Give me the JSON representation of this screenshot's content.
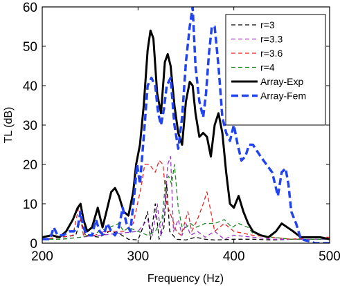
{
  "chart_data": {
    "type": "line",
    "xlabel": "Frequency (Hz)",
    "ylabel": "TL (dB)",
    "xlim": [
      200,
      500
    ],
    "ylim": [
      0,
      60
    ],
    "xticks": [
      200,
      300,
      400,
      500
    ],
    "yticks": [
      0,
      10,
      20,
      30,
      40,
      50,
      60
    ],
    "grid": false,
    "legend_position": "top-right",
    "series": [
      {
        "name": "r=3",
        "color": "#000000",
        "style": "dashed-thin",
        "points": [
          [
            200,
            1
          ],
          [
            220,
            1.5
          ],
          [
            235,
            2
          ],
          [
            240,
            6
          ],
          [
            245,
            2
          ],
          [
            260,
            1.5
          ],
          [
            270,
            3
          ],
          [
            280,
            2.5
          ],
          [
            290,
            1
          ],
          [
            300,
            0.8
          ],
          [
            305,
            4
          ],
          [
            310,
            8
          ],
          [
            313,
            1
          ],
          [
            318,
            10
          ],
          [
            322,
            1
          ],
          [
            327,
            4
          ],
          [
            330,
            15
          ],
          [
            333,
            3
          ],
          [
            340,
            1
          ],
          [
            350,
            0.8
          ],
          [
            360,
            1.5
          ],
          [
            370,
            1
          ],
          [
            380,
            0.8
          ],
          [
            400,
            1
          ],
          [
            420,
            1
          ],
          [
            440,
            0.8
          ],
          [
            460,
            1
          ],
          [
            480,
            1
          ],
          [
            500,
            1
          ]
        ]
      },
      {
        "name": "r=3.3",
        "color": "#9933cc",
        "style": "dashed-thin",
        "points": [
          [
            200,
            1
          ],
          [
            220,
            1
          ],
          [
            240,
            1.5
          ],
          [
            260,
            2
          ],
          [
            280,
            2.5
          ],
          [
            300,
            3
          ],
          [
            310,
            6
          ],
          [
            315,
            2
          ],
          [
            320,
            10
          ],
          [
            324,
            2
          ],
          [
            328,
            10
          ],
          [
            331,
            20
          ],
          [
            334,
            22
          ],
          [
            337,
            3
          ],
          [
            342,
            6
          ],
          [
            346,
            2
          ],
          [
            350,
            5
          ],
          [
            355,
            2
          ],
          [
            362,
            3
          ],
          [
            370,
            1.5
          ],
          [
            380,
            3
          ],
          [
            390,
            1
          ],
          [
            400,
            2
          ],
          [
            420,
            1.5
          ],
          [
            440,
            1
          ],
          [
            460,
            1
          ],
          [
            480,
            1
          ],
          [
            500,
            1
          ]
        ]
      },
      {
        "name": "r=3.6",
        "color": "#ee2222",
        "style": "dashed-thin",
        "points": [
          [
            200,
            1
          ],
          [
            220,
            1.5
          ],
          [
            232,
            2
          ],
          [
            238,
            9
          ],
          [
            243,
            2
          ],
          [
            255,
            2
          ],
          [
            265,
            3
          ],
          [
            275,
            3
          ],
          [
            285,
            3
          ],
          [
            295,
            5
          ],
          [
            303,
            14
          ],
          [
            307,
            20
          ],
          [
            312,
            20
          ],
          [
            318,
            18
          ],
          [
            322,
            21
          ],
          [
            326,
            20
          ],
          [
            330,
            10
          ],
          [
            336,
            6
          ],
          [
            340,
            3
          ],
          [
            345,
            2
          ],
          [
            352,
            8
          ],
          [
            356,
            3
          ],
          [
            362,
            6
          ],
          [
            368,
            10
          ],
          [
            372,
            13
          ],
          [
            376,
            8
          ],
          [
            380,
            3
          ],
          [
            390,
            5
          ],
          [
            400,
            3
          ],
          [
            420,
            2
          ],
          [
            440,
            1.5
          ],
          [
            460,
            1
          ],
          [
            480,
            1.5
          ],
          [
            500,
            1.5
          ]
        ]
      },
      {
        "name": "r=4",
        "color": "#228822",
        "style": "dashed-thin",
        "points": [
          [
            200,
            1
          ],
          [
            220,
            1
          ],
          [
            240,
            1.5
          ],
          [
            250,
            2
          ],
          [
            260,
            3
          ],
          [
            270,
            4
          ],
          [
            280,
            5
          ],
          [
            285,
            3
          ],
          [
            290,
            4
          ],
          [
            300,
            3
          ],
          [
            310,
            2
          ],
          [
            318,
            3
          ],
          [
            325,
            6
          ],
          [
            329,
            16
          ],
          [
            332,
            17
          ],
          [
            335,
            15
          ],
          [
            338,
            20
          ],
          [
            342,
            9
          ],
          [
            346,
            4
          ],
          [
            350,
            4
          ],
          [
            355,
            5
          ],
          [
            360,
            4
          ],
          [
            370,
            5
          ],
          [
            380,
            5
          ],
          [
            390,
            6
          ],
          [
            398,
            4
          ],
          [
            405,
            5
          ],
          [
            415,
            4
          ],
          [
            420,
            2.5
          ],
          [
            430,
            2
          ],
          [
            440,
            1.5
          ],
          [
            460,
            1
          ],
          [
            480,
            1
          ],
          [
            500,
            1
          ]
        ]
      },
      {
        "name": "Array-Exp",
        "color": "#000000",
        "style": "solid-thick",
        "points": [
          [
            200,
            1.5
          ],
          [
            210,
            2
          ],
          [
            218,
            1.5
          ],
          [
            225,
            3
          ],
          [
            232,
            6
          ],
          [
            237,
            9
          ],
          [
            240,
            10
          ],
          [
            243,
            6
          ],
          [
            247,
            3
          ],
          [
            252,
            4
          ],
          [
            258,
            9
          ],
          [
            263,
            4
          ],
          [
            268,
            9
          ],
          [
            272,
            13
          ],
          [
            276,
            14
          ],
          [
            280,
            12
          ],
          [
            285,
            8
          ],
          [
            290,
            7
          ],
          [
            295,
            13
          ],
          [
            298,
            20
          ],
          [
            302,
            25
          ],
          [
            306,
            35
          ],
          [
            310,
            49
          ],
          [
            313,
            54
          ],
          [
            316,
            52
          ],
          [
            320,
            38
          ],
          [
            324,
            33
          ],
          [
            328,
            46
          ],
          [
            331,
            48
          ],
          [
            334,
            45
          ],
          [
            338,
            35
          ],
          [
            342,
            28
          ],
          [
            346,
            25
          ],
          [
            350,
            36
          ],
          [
            354,
            41
          ],
          [
            357,
            40
          ],
          [
            360,
            33
          ],
          [
            364,
            27
          ],
          [
            368,
            28
          ],
          [
            372,
            27
          ],
          [
            376,
            22
          ],
          [
            380,
            30
          ],
          [
            384,
            33
          ],
          [
            388,
            28
          ],
          [
            392,
            18
          ],
          [
            396,
            10
          ],
          [
            400,
            9
          ],
          [
            405,
            12
          ],
          [
            410,
            8
          ],
          [
            415,
            5
          ],
          [
            420,
            3
          ],
          [
            428,
            2
          ],
          [
            436,
            1.5
          ],
          [
            444,
            3
          ],
          [
            450,
            5
          ],
          [
            456,
            4
          ],
          [
            462,
            3
          ],
          [
            470,
            1.5
          ],
          [
            480,
            1.5
          ],
          [
            490,
            1.5
          ],
          [
            500,
            1
          ]
        ]
      },
      {
        "name": "Array-Fem",
        "color": "#2244ee",
        "style": "dashed-thick",
        "points": [
          [
            200,
            1
          ],
          [
            208,
            1
          ],
          [
            212,
            4
          ],
          [
            216,
            2
          ],
          [
            222,
            2
          ],
          [
            228,
            3
          ],
          [
            233,
            3
          ],
          [
            237,
            4
          ],
          [
            240,
            8
          ],
          [
            243,
            4
          ],
          [
            247,
            2
          ],
          [
            252,
            2
          ],
          [
            256,
            6
          ],
          [
            260,
            3
          ],
          [
            264,
            2
          ],
          [
            268,
            5
          ],
          [
            272,
            3
          ],
          [
            276,
            2
          ],
          [
            280,
            4
          ],
          [
            284,
            9
          ],
          [
            288,
            5
          ],
          [
            292,
            3
          ],
          [
            296,
            12
          ],
          [
            299,
            20
          ],
          [
            302,
            15
          ],
          [
            306,
            27
          ],
          [
            310,
            40
          ],
          [
            314,
            42
          ],
          [
            318,
            40
          ],
          [
            321,
            33
          ],
          [
            324,
            30
          ],
          [
            327,
            34
          ],
          [
            330,
            40
          ],
          [
            334,
            42
          ],
          [
            338,
            30
          ],
          [
            342,
            24
          ],
          [
            346,
            32
          ],
          [
            350,
            46
          ],
          [
            354,
            55
          ],
          [
            357,
            60
          ],
          [
            360,
            45
          ],
          [
            364,
            36
          ],
          [
            368,
            32
          ],
          [
            371,
            38
          ],
          [
            374,
            48
          ],
          [
            377,
            55
          ],
          [
            380,
            55
          ],
          [
            384,
            45
          ],
          [
            388,
            32
          ],
          [
            392,
            28
          ],
          [
            396,
            26
          ],
          [
            400,
            30
          ],
          [
            404,
            25
          ],
          [
            408,
            21
          ],
          [
            412,
            22
          ],
          [
            416,
            25
          ],
          [
            420,
            25
          ],
          [
            428,
            22
          ],
          [
            434,
            20
          ],
          [
            440,
            18
          ],
          [
            446,
            12
          ],
          [
            450,
            18
          ],
          [
            454,
            19
          ],
          [
            457,
            15
          ],
          [
            460,
            8
          ],
          [
            465,
            5
          ],
          [
            470,
            1
          ],
          [
            478,
            0.5
          ],
          [
            485,
            0
          ],
          [
            500,
            0
          ]
        ]
      }
    ]
  }
}
